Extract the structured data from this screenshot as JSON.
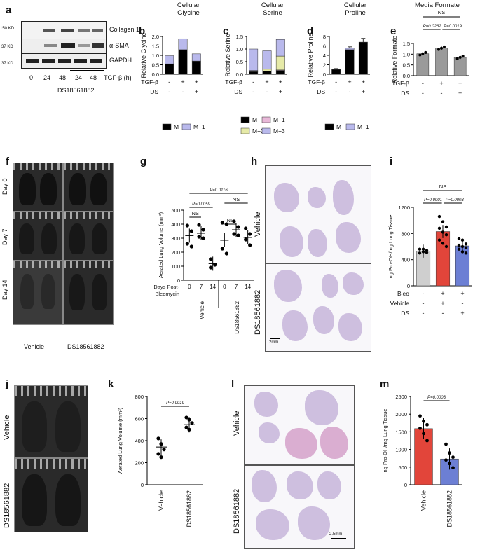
{
  "panels": {
    "a": {
      "label": "a",
      "rows": [
        "Collagen 1",
        "α-SMA",
        "GAPDH"
      ],
      "kd": [
        "150 KD",
        "37 KD",
        "37 KD"
      ],
      "lanes": [
        "0",
        "24",
        "48",
        "24",
        "48"
      ],
      "unit": "TGF-β (h)",
      "drug": "DS18561882"
    },
    "b": {
      "label": "b",
      "title": "Cellular\nGlycine",
      "ylabel": "Relative Glycine"
    },
    "c": {
      "label": "c",
      "title": "Cellular\nSerine",
      "ylabel": "Relative Serine"
    },
    "d": {
      "label": "d",
      "title": "Cellular\nProline",
      "ylabel": "Relative Proline"
    },
    "e": {
      "label": "e",
      "title": "Media Formate",
      "ylabel": "Relative Formate",
      "ns": "NS",
      "p1": "P=0.0262",
      "p2": "P=0.0019"
    },
    "f": {
      "label": "f",
      "rows": [
        "Day 0",
        "Day 7",
        "Day 14"
      ],
      "cols": [
        "Vehicle",
        "DS18561882"
      ]
    },
    "g": {
      "label": "g",
      "ylabel": "Aerated Lung Volume (mm³)",
      "xlabel1": "Days Post-",
      "xlabel2": "Bleomycin",
      "days": [
        "0",
        "7",
        "14",
        "0",
        "7",
        "14"
      ],
      "groups": [
        "Vehicle",
        "DS18561882"
      ],
      "p_top": "P=0.0116",
      "p_mid": "P=0.0059",
      "ns1": "NS",
      "ns2": "NS",
      "ns3": "NS"
    },
    "h": {
      "label": "h",
      "rows": [
        "Vehicle",
        "DS18561882"
      ],
      "scale": "2mm"
    },
    "i": {
      "label": "i",
      "ylabel": "ng Pro-OH/mg Lung Tissue",
      "ns": "NS",
      "p1": "P=0.0001",
      "p2": "P=0.0003",
      "rowlabels": [
        "Bleo",
        "Vehicle",
        "DS"
      ],
      "signs": [
        [
          "-",
          "+",
          "+"
        ],
        [
          "-",
          "+",
          "-"
        ],
        [
          "-",
          "-",
          "+"
        ]
      ]
    },
    "j": {
      "label": "j",
      "rows": [
        "Vehicle",
        "DS18561882"
      ]
    },
    "k": {
      "label": "k",
      "ylabel": "Aerated Lung Volume (mm³)",
      "p": "P=0.0019",
      "cats": [
        "Vehicle",
        "DS18561882"
      ]
    },
    "l": {
      "label": "l",
      "rows": [
        "Vehicle",
        "DS18561882"
      ],
      "scale": "2.5mm"
    },
    "m": {
      "label": "m",
      "ylabel": "ng Pro-OH/mg Lung Tissue",
      "p": "P=0.0003",
      "cats": [
        "Vehicle",
        "DS18561882"
      ]
    }
  },
  "treat_rows": {
    "tgf": "TGF-β",
    "ds": "DS"
  },
  "legend_bd": {
    "m": "M",
    "m1": "M+1",
    "m2": "M+2",
    "m3": "M+3"
  },
  "colors": {
    "m": "#000000",
    "m1": "#b9b9ec",
    "m2": "#e6eaa8",
    "m3": "#b9b9ec",
    "m1c": "#e8b8d8",
    "grey": "#9a9a9a",
    "lightgrey": "#cfcfcf",
    "red": "#e2453a",
    "blue": "#6c7fd4"
  },
  "chart_data": [
    {
      "id": "b",
      "type": "bar",
      "stacked": true,
      "categories": [
        "-/-",
        "+/-",
        "+/+"
      ],
      "series": [
        {
          "name": "M",
          "values": [
            0.55,
            1.3,
            0.7
          ]
        },
        {
          "name": "M+1",
          "values": [
            0.43,
            0.58,
            0.38
          ]
        }
      ],
      "ylim": [
        0,
        2
      ],
      "yticks": [
        0.0,
        0.5,
        1.0,
        1.5,
        2.0
      ]
    },
    {
      "id": "c",
      "type": "bar",
      "stacked": true,
      "categories": [
        "-/-",
        "+/-",
        "+/+"
      ],
      "series": [
        {
          "name": "M",
          "values": [
            0.1,
            0.12,
            0.15
          ]
        },
        {
          "name": "M+1",
          "values": [
            0.01,
            0.01,
            0.02
          ]
        },
        {
          "name": "M+2",
          "values": [
            0.04,
            0.07,
            0.55
          ]
        },
        {
          "name": "M+3",
          "values": [
            0.85,
            0.73,
            0.66
          ]
        }
      ],
      "ylim": [
        0,
        1.5
      ],
      "yticks": [
        0.0,
        0.5,
        1.0,
        1.5
      ]
    },
    {
      "id": "d",
      "type": "bar",
      "stacked": true,
      "categories": [
        "-/-",
        "+/-",
        "+/+"
      ],
      "series": [
        {
          "name": "M",
          "values": [
            1.0,
            5.2,
            6.8
          ]
        },
        {
          "name": "M+1",
          "values": [
            0.0,
            0.3,
            0.0
          ]
        }
      ],
      "ylim": [
        0,
        8
      ],
      "yticks": [
        0,
        2,
        4,
        6,
        8
      ],
      "errors": [
        0.2,
        0.3,
        0.8
      ]
    },
    {
      "id": "e",
      "type": "bar",
      "categories": [
        "-/-",
        "+/-",
        "+/+"
      ],
      "values": [
        1.02,
        1.28,
        0.85
      ],
      "ylim": [
        0,
        1.5
      ],
      "yticks": [
        0.0,
        0.5,
        1.0,
        1.5
      ]
    },
    {
      "id": "g",
      "type": "scatter",
      "ylim": [
        0,
        500
      ],
      "yticks": [
        0,
        100,
        200,
        300,
        400,
        500
      ],
      "groups": [
        {
          "x": "Vehicle d0",
          "mean": 318,
          "points": [
            390,
            350,
            260,
            240
          ]
        },
        {
          "x": "Vehicle d7",
          "mean": 335,
          "points": [
            395,
            360,
            310,
            300
          ]
        },
        {
          "x": "Vehicle d14",
          "mean": 118,
          "points": [
            150,
            110,
            90
          ]
        },
        {
          "x": "DS d0",
          "mean": 285,
          "points": [
            410,
            400,
            225,
            190
          ]
        },
        {
          "x": "DS d7",
          "mean": 360,
          "points": [
            420,
            380,
            330,
            320
          ]
        },
        {
          "x": "DS d14",
          "mean": 305,
          "points": [
            370,
            330,
            290,
            250
          ]
        }
      ]
    },
    {
      "id": "i",
      "type": "bar",
      "ylim": [
        0,
        1200
      ],
      "yticks": [
        0,
        400,
        800,
        1200
      ],
      "values": [
        530,
        830,
        610
      ],
      "points": [
        [
          560,
          520,
          510,
          500,
          560,
          540
        ],
        [
          1060,
          980,
          900,
          880,
          820,
          780,
          700,
          650,
          600
        ],
        [
          720,
          700,
          640,
          620,
          600,
          580,
          560,
          520,
          500
        ]
      ]
    },
    {
      "id": "k",
      "type": "scatter",
      "categories": [
        "Vehicle",
        "DS18561882"
      ],
      "ylim": [
        0,
        800
      ],
      "yticks": [
        0,
        200,
        400,
        600,
        800
      ],
      "means": [
        342,
        545
      ],
      "points": [
        [
          420,
          370,
          320,
          280,
          250
        ],
        [
          610,
          590,
          560,
          520,
          500
        ]
      ]
    },
    {
      "id": "m",
      "type": "bar",
      "categories": [
        "Vehicle",
        "DS18561882"
      ],
      "ylim": [
        0,
        2500
      ],
      "yticks": [
        0,
        500,
        1000,
        1500,
        2000,
        2500
      ],
      "values": [
        1590,
        730
      ],
      "points": [
        [
          1950,
          1800,
          1700,
          1600,
          1450,
          1250
        ],
        [
          1150,
          900,
          780,
          700,
          600,
          480
        ]
      ]
    }
  ]
}
